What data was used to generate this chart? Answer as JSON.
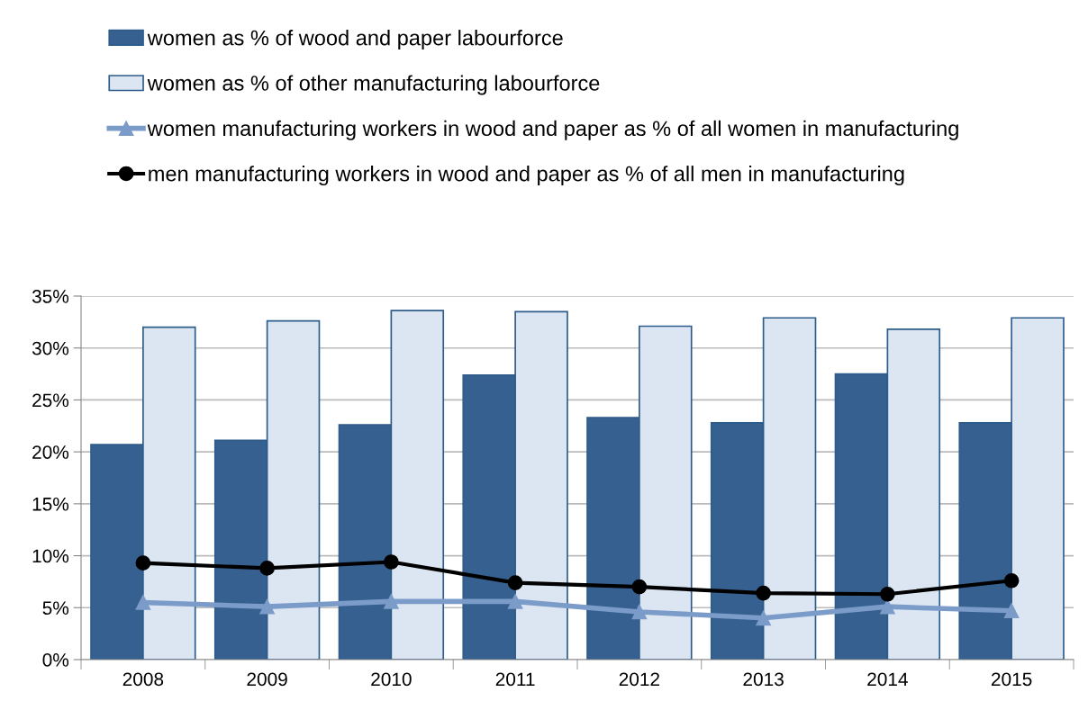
{
  "chart_data": {
    "type": "bar",
    "categories": [
      "2008",
      "2009",
      "2010",
      "2011",
      "2012",
      "2013",
      "2014",
      "2015"
    ],
    "series": [
      {
        "name": "women as % of wood and paper labourforce",
        "color": "#36608f",
        "values": [
          20.7,
          21.1,
          22.6,
          27.4,
          23.3,
          22.8,
          27.5,
          22.8
        ]
      },
      {
        "name": "women as % of other manufacturing labourforce",
        "color": "#dce6f2",
        "values": [
          32.0,
          32.6,
          33.6,
          33.5,
          32.1,
          32.9,
          31.8,
          32.9
        ]
      },
      {
        "name": "women manufacturing workers in wood and paper as % of all women in manufacturing",
        "type": "line",
        "marker": "triangle",
        "color": "#7b9bc9",
        "values": [
          5.5,
          5.1,
          5.6,
          5.6,
          4.6,
          4.0,
          5.1,
          4.7
        ]
      },
      {
        "name": "men manufacturing workers in wood and paper as % of all men in manufacturing",
        "type": "line",
        "marker": "circle",
        "color": "#000000",
        "values": [
          9.3,
          8.8,
          9.4,
          7.4,
          7.0,
          6.4,
          6.3,
          7.6
        ]
      }
    ],
    "ylim": [
      0,
      35
    ],
    "yticks": [
      {
        "value": 0,
        "label": "0%"
      },
      {
        "value": 5,
        "label": "5%"
      },
      {
        "value": 10,
        "label": "10%"
      },
      {
        "value": 15,
        "label": "15%"
      },
      {
        "value": 20,
        "label": "20%"
      },
      {
        "value": 25,
        "label": "25%"
      },
      {
        "value": 30,
        "label": "30%"
      },
      {
        "value": 35,
        "label": "35%"
      }
    ],
    "grid": "y",
    "legend": "top left"
  }
}
